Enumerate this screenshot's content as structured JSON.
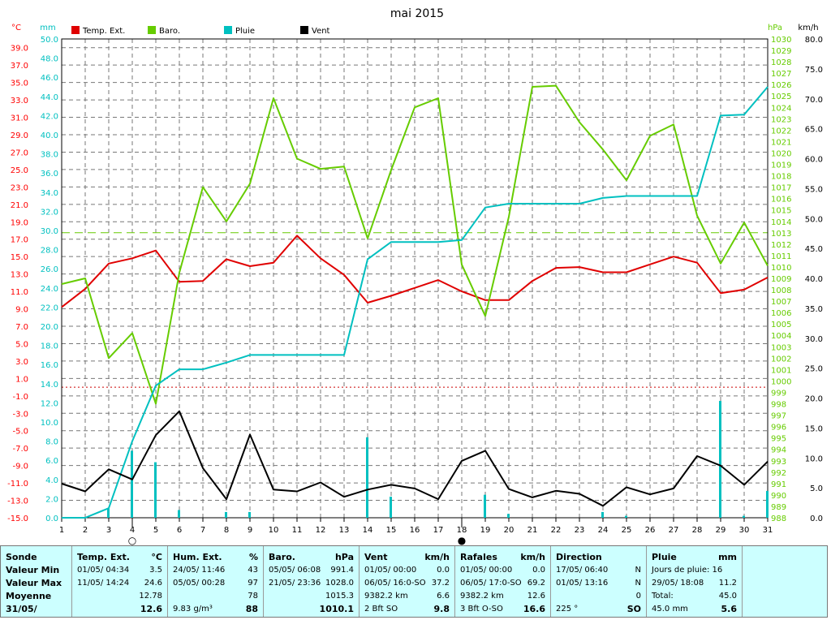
{
  "chart_data": {
    "type": "line",
    "title": "mai 2015",
    "x": [
      1,
      2,
      3,
      4,
      5,
      6,
      7,
      8,
      9,
      10,
      11,
      12,
      13,
      14,
      15,
      16,
      17,
      18,
      19,
      20,
      21,
      22,
      23,
      24,
      25,
      26,
      27,
      28,
      29,
      30,
      31
    ],
    "axes": {
      "temp": {
        "label": "°C",
        "range": [
          -15.0,
          40.0
        ],
        "ticks": [
          "39.0",
          "37.0",
          "35.0",
          "33.0",
          "31.0",
          "29.0",
          "27.0",
          "25.0",
          "23.0",
          "21.0",
          "19.0",
          "17.0",
          "15.0",
          "13.0",
          "11.0",
          "9.0",
          "7.0",
          "5.0",
          "3.0",
          "1.0",
          "-1.0",
          "-3.0",
          "-5.0",
          "-7.0",
          "-9.0",
          "-11.0",
          "-13.0",
          "-15.0"
        ],
        "color": "#ff0000"
      },
      "rain": {
        "label": "mm",
        "range": [
          0.0,
          50.0
        ],
        "ticks": [
          "50.0",
          "48.0",
          "46.0",
          "44.0",
          "42.0",
          "40.0",
          "38.0",
          "36.0",
          "34.0",
          "32.0",
          "30.0",
          "28.0",
          "26.0",
          "24.0",
          "22.0",
          "20.0",
          "18.0",
          "16.0",
          "14.0",
          "12.0",
          "10.0",
          "8.0",
          "6.0",
          "4.0",
          "2.0",
          "0.0"
        ],
        "color": "#00c0c0"
      },
      "baro": {
        "label": "hPa",
        "range": [
          988,
          1030
        ],
        "ticks": [
          "1030",
          "1029",
          "1028",
          "1027",
          "1026",
          "1025",
          "1024",
          "1023",
          "1022",
          "1021",
          "1020",
          "1019",
          "1018",
          "1017",
          "1016",
          "1015",
          "1014",
          "1013",
          "1012",
          "1011",
          "1010",
          "1009",
          "1008",
          "1007",
          "1006",
          "1005",
          "1004",
          "1003",
          "1002",
          "1001",
          "1000",
          "999",
          "998",
          "997",
          "996",
          "995",
          "994",
          "993",
          "992",
          "991",
          "990",
          "989",
          "988"
        ],
        "color": "#66cc00"
      },
      "wind": {
        "label": "km/h",
        "range": [
          0.0,
          80.0
        ],
        "ticks": [
          "80.0",
          "75.0",
          "70.0",
          "65.0",
          "60.0",
          "55.0",
          "50.0",
          "45.0",
          "40.0",
          "35.0",
          "30.0",
          "25.0",
          "20.0",
          "15.0",
          "10.0",
          "5.0",
          "0.0"
        ],
        "color": "#000000"
      }
    },
    "series": [
      {
        "name": "Temp. Ext.",
        "axis": "temp",
        "color": "#e00000",
        "values": [
          9.2,
          11.3,
          14.2,
          14.8,
          15.7,
          12.1,
          12.2,
          14.7,
          13.9,
          14.3,
          17.4,
          14.8,
          12.9,
          9.7,
          10.5,
          11.4,
          12.3,
          11.0,
          10.0,
          10.0,
          12.2,
          13.7,
          13.8,
          13.2,
          13.2,
          14.1,
          15.0,
          14.3,
          10.8,
          11.2,
          12.6
        ]
      },
      {
        "name": "Baro.",
        "axis": "baro",
        "color": "#66cc00",
        "values": [
          1008.5,
          1009.0,
          1002.0,
          1004.2,
          998.0,
          1009.5,
          1017.0,
          1014.0,
          1017.3,
          1024.8,
          1019.5,
          1018.6,
          1018.8,
          1012.5,
          1018.5,
          1024.0,
          1024.8,
          1010.2,
          1005.7,
          1014.4,
          1025.8,
          1025.9,
          1022.7,
          1020.3,
          1017.6,
          1021.5,
          1022.5,
          1014.5,
          1010.3,
          1013.9,
          1010.1
        ]
      },
      {
        "name": "Pluie",
        "axis": "rain",
        "color": "#00c0c0",
        "values": [
          0.0,
          0.0,
          1.0,
          8.0,
          13.8,
          15.5,
          15.5,
          16.2,
          17.0,
          17.0,
          17.0,
          17.0,
          17.0,
          27.0,
          28.8,
          28.8,
          28.8,
          29.0,
          32.4,
          32.8,
          32.8,
          32.8,
          32.8,
          33.4,
          33.6,
          33.6,
          33.6,
          33.6,
          42.0,
          42.1,
          45.0
        ]
      },
      {
        "name": "Vent",
        "axis": "wind",
        "color": "#000000",
        "values": [
          5.7,
          4.4,
          8.1,
          6.4,
          13.8,
          17.8,
          8.3,
          3.1,
          13.9,
          4.7,
          4.4,
          5.9,
          3.5,
          4.7,
          5.5,
          4.9,
          3.1,
          9.5,
          11.2,
          4.8,
          3.4,
          4.5,
          4.0,
          2.0,
          5.1,
          3.9,
          4.9,
          10.3,
          8.7,
          5.5,
          9.4
        ]
      }
    ],
    "rain_bars": [
      {
        "x": 3,
        "value": 1.0
      },
      {
        "x": 4,
        "value": 7.0
      },
      {
        "x": 5,
        "value": 5.8
      },
      {
        "x": 6,
        "value": 0.8
      },
      {
        "x": 8,
        "value": 0.6
      },
      {
        "x": 9,
        "value": 0.6
      },
      {
        "x": 14,
        "value": 8.4
      },
      {
        "x": 15,
        "value": 2.2
      },
      {
        "x": 19,
        "value": 2.4
      },
      {
        "x": 20,
        "value": 0.4
      },
      {
        "x": 24,
        "value": 0.6
      },
      {
        "x": 25,
        "value": 0.2
      },
      {
        "x": 29,
        "value": 12.2
      },
      {
        "x": 30,
        "value": 0.2
      },
      {
        "x": 31,
        "value": 2.8
      }
    ],
    "ref_lines": [
      {
        "axis": "temp",
        "value": 0.0,
        "color": "#cc0000",
        "style": "dotted"
      },
      {
        "axis": "baro",
        "value": 1013.0,
        "color": "#66cc00",
        "style": "dashed"
      }
    ],
    "legend": [
      {
        "label": "Temp. Ext.",
        "color": "#e00000"
      },
      {
        "label": "Baro.",
        "color": "#66cc00"
      },
      {
        "label": "Pluie",
        "color": "#00c0c0"
      },
      {
        "label": "Vent",
        "color": "#000000"
      }
    ],
    "markers": [
      {
        "x": 4,
        "symbol": "○",
        "label": "new-moon-icon"
      },
      {
        "x": 18,
        "symbol": "●",
        "label": "full-moon-icon"
      }
    ],
    "grid": true
  },
  "panel": {
    "labels": {
      "c0": "Sonde",
      "c1": "Valeur Min",
      "c2": "Valeur Max",
      "c3": "Moyenne",
      "c4": "31/05/"
    },
    "temp": {
      "h": "Temp. Ext.",
      "u": "°C",
      "r1a": "01/05/  04:34",
      "r1b": "3.5",
      "r2a": "11/05/  14:24",
      "r2b": "24.6",
      "r3b": "12.78",
      "r4b": "12.6"
    },
    "hum": {
      "h": "Hum. Ext.",
      "u": "%",
      "r1a": "24/05/  11:46",
      "r1b": "43",
      "r2a": "05/05/  00:28",
      "r2b": "97",
      "r3b": "78",
      "r4a": "9.83 g/m³",
      "r4b": "88"
    },
    "baro": {
      "h": "Baro.",
      "u": "hPa",
      "r1a": "05/05/  06:08",
      "r1b": "991.4",
      "r2a": "21/05/  23:36",
      "r2b": "1028.0",
      "r3b": "1015.3",
      "r4b": "1010.1"
    },
    "vent": {
      "h": "Vent",
      "u": "km/h",
      "r1a": "01/05/  00:00",
      "r1b": "0.0",
      "r2a": "06/05/  16:0-SO",
      "r2b": "37.2",
      "r3a": "9382.2 km",
      "r3b": "6.6",
      "r4a": "2 Bft SO",
      "r4b": "9.8"
    },
    "raf": {
      "h": "Rafales",
      "u": "km/h",
      "r1a": "01/05/  00:00",
      "r1b": "0.0",
      "r2a": "06/05/  17:0-SO",
      "r2b": "69.2",
      "r3a": "9382.2 km",
      "r3b": "12.6",
      "r4a": "3 Bft O-SO",
      "r4b": "16.6"
    },
    "dir": {
      "h": "Direction",
      "r1a": "17/05/  06:40",
      "r1b": "N",
      "r2a": "01/05/  13:16",
      "r2b": "N",
      "r3b": "0",
      "r4a": "225 °",
      "r4b": "SO"
    },
    "pluie": {
      "h": "Pluie",
      "u": "mm",
      "r1a": "Jours de pluie: 16",
      "r2a": "29/05/  18:08",
      "r2b": "11.2",
      "r3a": "Total:",
      "r3b": "45.0",
      "r4a": "45.0 mm",
      "r4b": "5.6"
    }
  }
}
